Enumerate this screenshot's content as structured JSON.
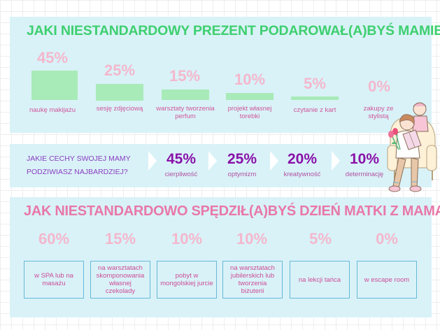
{
  "section1": {
    "title": "JAKI NIESTANDARDOWY PREZENT PODAROWAŁ(A)BYŚ MAMIE?",
    "items": [
      {
        "percent": "45%",
        "value": 45,
        "label": "naukę makijażu"
      },
      {
        "percent": "25%",
        "value": 25,
        "label": "sesję zdjęciową"
      },
      {
        "percent": "15%",
        "value": 15,
        "label": "warsztaty tworzenia perfum"
      },
      {
        "percent": "10%",
        "value": 10,
        "label": "projekt własnej torebki"
      },
      {
        "percent": "5%",
        "value": 5,
        "label": "czytanie z kart"
      },
      {
        "percent": "0%",
        "value": 0,
        "label": "zakupy ze stylistą"
      }
    ]
  },
  "section2": {
    "question_line1": "JAKIE CECHY SWOJEJ MAMY",
    "question_line2": "PODZIWIASZ NAJBARDZIEJ?",
    "traits": [
      {
        "percent": "45%",
        "label": "cierpliwość"
      },
      {
        "percent": "25%",
        "label": "optymizm"
      },
      {
        "percent": "20%",
        "label": "kreatywność"
      },
      {
        "percent": "10%",
        "label": "determinację"
      }
    ]
  },
  "section3": {
    "title": "JAK NIESTANDARDOWO SPĘDZIŁ(A)BYŚ DZIEŃ MATKI Z MAMĄ?",
    "items": [
      {
        "percent": "60%",
        "label": "w SPA lub na masażu"
      },
      {
        "percent": "15%",
        "label": "na warsztatach skomponowania własnej czekolady"
      },
      {
        "percent": "10%",
        "label": "pobyt w mongolskiej jurcie"
      },
      {
        "percent": "10%",
        "label": "na warsztatach jubilerskich lub tworzenia biżuterii"
      },
      {
        "percent": "5%",
        "label": "na lekcji tańca"
      },
      {
        "percent": "0%",
        "label": "w escape room"
      }
    ]
  },
  "colors": {
    "panel": "#d9f2f8",
    "green_title": "#3ecf6f",
    "bar": "#a8eab8",
    "pink_percent": "#f4b7cc",
    "pink_label": "#d0569a",
    "purple_trait": "#8a12a8",
    "box_border": "#67b9d8"
  },
  "illustration": {
    "icon": "mother-and-child-reading-illustration"
  }
}
